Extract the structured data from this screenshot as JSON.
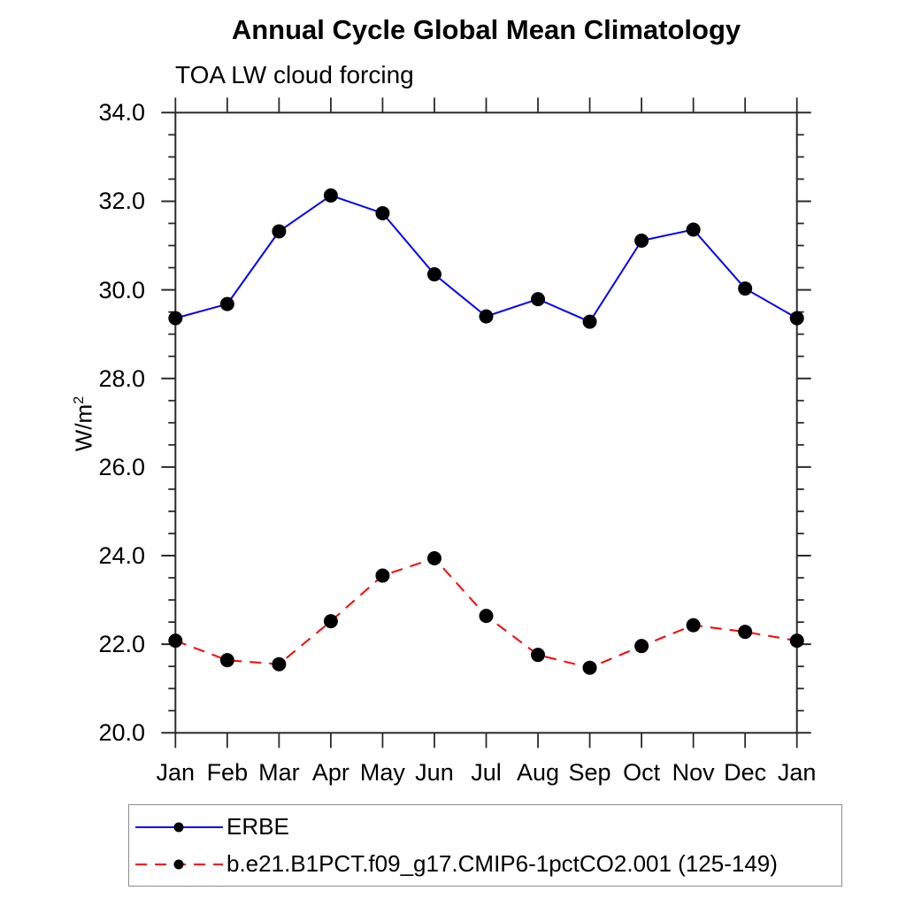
{
  "page": {
    "background": "#ffffff"
  },
  "header": {
    "title": "Annual Cycle Global Mean Climatology",
    "subtitle": "TOA LW cloud forcing"
  },
  "axis": {
    "ylabel_base": "W/m",
    "ylabel_sup": "2"
  },
  "chart_data": {
    "type": "line",
    "title": "Annual Cycle Global Mean Climatology",
    "subtitle": "TOA LW cloud forcing",
    "xlabel": "",
    "ylabel": "W/m^2",
    "grid": false,
    "legend_position": "bottom-left-box",
    "x_categories": [
      "Jan",
      "Feb",
      "Mar",
      "Apr",
      "May",
      "Jun",
      "Jul",
      "Aug",
      "Sep",
      "Oct",
      "Nov",
      "Dec",
      "Jan"
    ],
    "ylim": [
      20.0,
      34.0
    ],
    "y_major_step": 2.0,
    "y_minor_step": 0.5,
    "y_tick_labels": [
      "34.0",
      "32.0",
      "30.0",
      "28.0",
      "26.0",
      "24.0",
      "22.0",
      "20.0"
    ],
    "colors": {
      "frame": "#2a2a2a",
      "marker": "#000000",
      "erbe_line": "#0000ff",
      "model_line": "#ff0000"
    },
    "series": [
      {
        "name": "ERBE",
        "color": "#0000ff",
        "line_style": "solid",
        "marker": "circle",
        "marker_color": "#000000",
        "values": [
          29.36,
          29.68,
          31.32,
          32.13,
          31.73,
          30.35,
          29.4,
          29.79,
          29.28,
          31.11,
          31.36,
          30.03,
          29.36
        ]
      },
      {
        "name": "b.e21.B1PCT.f09_g17.CMIP6-1pctCO2.001 (125-149)",
        "color": "#ff0000",
        "line_style": "dashed",
        "marker": "circle",
        "marker_color": "#000000",
        "values": [
          22.08,
          21.64,
          21.55,
          22.52,
          23.55,
          23.94,
          22.64,
          21.76,
          21.47,
          21.96,
          22.43,
          22.28,
          22.08
        ]
      }
    ]
  }
}
